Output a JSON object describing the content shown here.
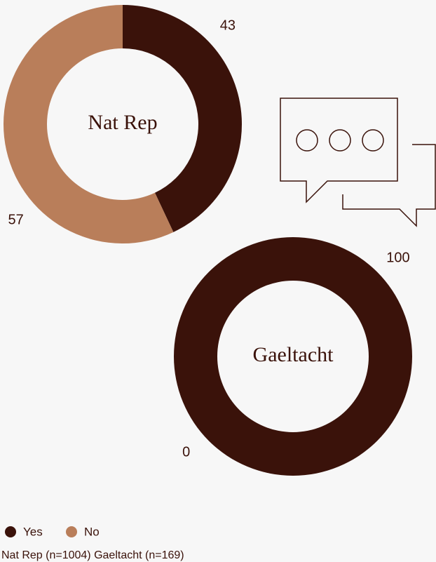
{
  "chart_data": [
    {
      "type": "donut",
      "title": "Nat Rep",
      "categories": [
        "Yes",
        "No"
      ],
      "values": [
        43,
        57
      ],
      "colors": [
        "#3a120a",
        "#b97e5a"
      ]
    },
    {
      "type": "donut",
      "title": "Gaeltacht",
      "categories": [
        "Yes",
        "No"
      ],
      "values": [
        100,
        0
      ],
      "colors": [
        "#3a120a",
        "#b97e5a"
      ]
    }
  ],
  "note": "Nat Rep (n=1004) Gaeltacht (n=169)"
}
